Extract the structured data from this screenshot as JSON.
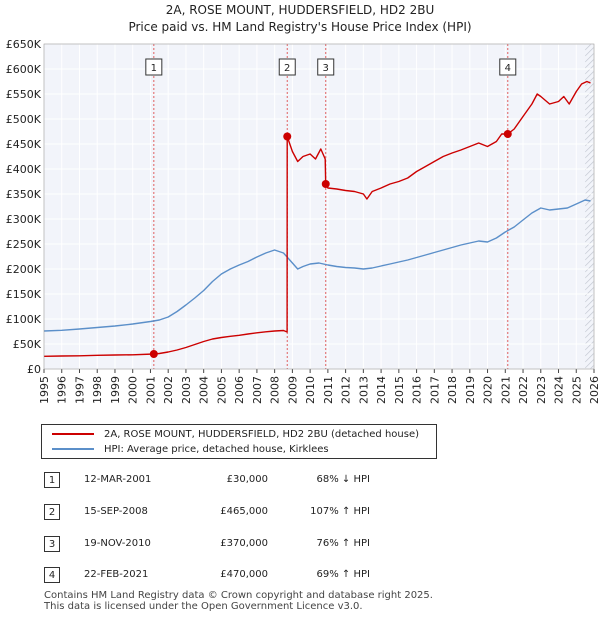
{
  "chart_data": {
    "type": "line",
    "title": "2A, ROSE MOUNT, HUDDERSFIELD, HD2 2BU",
    "subtitle": "Price paid vs. HM Land Registry's House Price Index (HPI)",
    "xlim": [
      1995,
      2026
    ],
    "ylim": [
      0,
      650000
    ],
    "x_ticks": [
      "1995",
      "1996",
      "1997",
      "1998",
      "1999",
      "2000",
      "2001",
      "2002",
      "2003",
      "2004",
      "2005",
      "2006",
      "2007",
      "2008",
      "2009",
      "2010",
      "2011",
      "2012",
      "2013",
      "2014",
      "2015",
      "2016",
      "2017",
      "2018",
      "2019",
      "2020",
      "2021",
      "2022",
      "2023",
      "2024",
      "2025",
      "2026"
    ],
    "y_ticks": [
      {
        "value": 0,
        "label": "£0"
      },
      {
        "value": 50000,
        "label": "£50K"
      },
      {
        "value": 100000,
        "label": "£100K"
      },
      {
        "value": 150000,
        "label": "£150K"
      },
      {
        "value": 200000,
        "label": "£200K"
      },
      {
        "value": 250000,
        "label": "£250K"
      },
      {
        "value": 300000,
        "label": "£300K"
      },
      {
        "value": 350000,
        "label": "£350K"
      },
      {
        "value": 400000,
        "label": "£400K"
      },
      {
        "value": 450000,
        "label": "£450K"
      },
      {
        "value": 500000,
        "label": "£500K"
      },
      {
        "value": 550000,
        "label": "£550K"
      },
      {
        "value": 600000,
        "label": "£600K"
      },
      {
        "value": 650000,
        "label": "£650K"
      }
    ],
    "series": [
      {
        "name": "2A, ROSE MOUNT, HUDDERSFIELD, HD2 2BU (detached house)",
        "color": "#cc0000",
        "points": [
          [
            1995.0,
            25500
          ],
          [
            1996.0,
            26000
          ],
          [
            1997.0,
            26500
          ],
          [
            1998.0,
            27500
          ],
          [
            1999.0,
            28000
          ],
          [
            2000.0,
            28500
          ],
          [
            2001.19,
            30000
          ],
          [
            2001.5,
            31000
          ],
          [
            2002.0,
            34000
          ],
          [
            2002.5,
            38000
          ],
          [
            2003.0,
            43000
          ],
          [
            2003.5,
            49000
          ],
          [
            2004.0,
            55000
          ],
          [
            2004.5,
            60000
          ],
          [
            2005.0,
            63000
          ],
          [
            2005.5,
            65500
          ],
          [
            2006.0,
            67500
          ],
          [
            2006.5,
            70000
          ],
          [
            2007.0,
            72500
          ],
          [
            2007.5,
            74500
          ],
          [
            2008.0,
            76000
          ],
          [
            2008.5,
            77000
          ],
          [
            2008.7,
            74000
          ],
          [
            2008.71,
            465000
          ],
          [
            2009.0,
            435000
          ],
          [
            2009.3,
            415000
          ],
          [
            2009.6,
            425000
          ],
          [
            2010.0,
            430000
          ],
          [
            2010.3,
            420000
          ],
          [
            2010.6,
            440000
          ],
          [
            2010.85,
            420000
          ],
          [
            2010.88,
            370000
          ],
          [
            2011.0,
            362000
          ],
          [
            2011.5,
            360000
          ],
          [
            2012.0,
            357000
          ],
          [
            2012.5,
            355000
          ],
          [
            2013.0,
            350000
          ],
          [
            2013.2,
            340000
          ],
          [
            2013.5,
            355000
          ],
          [
            2014.0,
            362000
          ],
          [
            2014.5,
            370000
          ],
          [
            2015.0,
            375000
          ],
          [
            2015.5,
            382000
          ],
          [
            2016.0,
            395000
          ],
          [
            2016.5,
            405000
          ],
          [
            2017.0,
            415000
          ],
          [
            2017.5,
            425000
          ],
          [
            2018.0,
            432000
          ],
          [
            2018.5,
            438000
          ],
          [
            2019.0,
            445000
          ],
          [
            2019.5,
            452000
          ],
          [
            2020.0,
            445000
          ],
          [
            2020.5,
            455000
          ],
          [
            2020.8,
            470000
          ],
          [
            2021.14,
            470000
          ],
          [
            2021.5,
            480000
          ],
          [
            2022.0,
            505000
          ],
          [
            2022.5,
            530000
          ],
          [
            2022.8,
            550000
          ],
          [
            2023.0,
            545000
          ],
          [
            2023.5,
            530000
          ],
          [
            2024.0,
            535000
          ],
          [
            2024.3,
            545000
          ],
          [
            2024.6,
            530000
          ],
          [
            2025.0,
            555000
          ],
          [
            2025.3,
            570000
          ],
          [
            2025.6,
            575000
          ],
          [
            2025.8,
            572000
          ]
        ]
      },
      {
        "name": "HPI: Average price, detached house, Kirklees",
        "color": "#5b8fc9",
        "points": [
          [
            1995.0,
            76000
          ],
          [
            1996.0,
            77500
          ],
          [
            1997.0,
            80000
          ],
          [
            1998.0,
            83000
          ],
          [
            1999.0,
            86000
          ],
          [
            2000.0,
            90000
          ],
          [
            2001.0,
            95000
          ],
          [
            2001.5,
            98000
          ],
          [
            2002.0,
            104000
          ],
          [
            2002.5,
            115000
          ],
          [
            2003.0,
            128000
          ],
          [
            2003.5,
            142000
          ],
          [
            2004.0,
            157000
          ],
          [
            2004.5,
            175000
          ],
          [
            2005.0,
            190000
          ],
          [
            2005.5,
            200000
          ],
          [
            2006.0,
            208000
          ],
          [
            2006.5,
            215000
          ],
          [
            2007.0,
            224000
          ],
          [
            2007.5,
            232000
          ],
          [
            2008.0,
            238000
          ],
          [
            2008.5,
            232000
          ],
          [
            2009.0,
            212000
          ],
          [
            2009.3,
            200000
          ],
          [
            2009.6,
            205000
          ],
          [
            2010.0,
            210000
          ],
          [
            2010.5,
            212000
          ],
          [
            2011.0,
            208000
          ],
          [
            2011.5,
            205000
          ],
          [
            2012.0,
            203000
          ],
          [
            2012.5,
            202000
          ],
          [
            2013.0,
            200000
          ],
          [
            2013.5,
            202000
          ],
          [
            2014.0,
            206000
          ],
          [
            2014.5,
            210000
          ],
          [
            2015.0,
            214000
          ],
          [
            2015.5,
            218000
          ],
          [
            2016.0,
            223000
          ],
          [
            2016.5,
            228000
          ],
          [
            2017.0,
            233000
          ],
          [
            2017.5,
            238000
          ],
          [
            2018.0,
            243000
          ],
          [
            2018.5,
            248000
          ],
          [
            2019.0,
            252000
          ],
          [
            2019.5,
            256000
          ],
          [
            2020.0,
            254000
          ],
          [
            2020.5,
            262000
          ],
          [
            2021.0,
            274000
          ],
          [
            2021.5,
            284000
          ],
          [
            2022.0,
            298000
          ],
          [
            2022.5,
            312000
          ],
          [
            2023.0,
            322000
          ],
          [
            2023.5,
            318000
          ],
          [
            2024.0,
            320000
          ],
          [
            2024.5,
            322000
          ],
          [
            2025.0,
            330000
          ],
          [
            2025.5,
            338000
          ],
          [
            2025.8,
            336000
          ]
        ]
      }
    ],
    "markers": [
      {
        "label": "1",
        "x": 2001.19,
        "y": 30000
      },
      {
        "label": "2",
        "x": 2008.71,
        "y": 465000
      },
      {
        "label": "3",
        "x": 2010.88,
        "y": 370000
      },
      {
        "label": "4",
        "x": 2021.14,
        "y": 470000
      }
    ],
    "forecast_from": 2025.5
  },
  "transactions": [
    {
      "num": "1",
      "date": "12-MAR-2001",
      "price": "£30,000",
      "hpi": "68% ↓ HPI"
    },
    {
      "num": "2",
      "date": "15-SEP-2008",
      "price": "£465,000",
      "hpi": "107% ↑ HPI"
    },
    {
      "num": "3",
      "date": "19-NOV-2010",
      "price": "£370,000",
      "hpi": "76% ↑ HPI"
    },
    {
      "num": "4",
      "date": "22-FEB-2021",
      "price": "£470,000",
      "hpi": "69% ↑ HPI"
    }
  ],
  "footer": {
    "line1": "Contains HM Land Registry data © Crown copyright and database right 2025.",
    "line2": "This data is licensed under the Open Government Licence v3.0."
  }
}
